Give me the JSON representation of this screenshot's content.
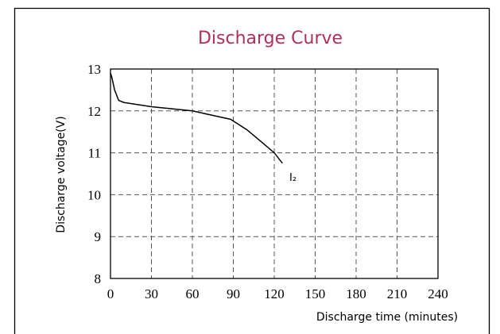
{
  "chart_data": {
    "type": "line",
    "title": "Discharge Curve",
    "x_label": "Discharge time (minutes)",
    "y_label": "Discharge voltage(V)",
    "annotation": "I₂",
    "series": [
      {
        "name": "I₂",
        "color": "#000000",
        "x": [
          0,
          1,
          3,
          6,
          10,
          30,
          60,
          88,
          100,
          111,
          120,
          126
        ],
        "values": [
          12.9,
          12.8,
          12.5,
          12.25,
          12.2,
          12.1,
          12.0,
          11.8,
          11.55,
          11.25,
          11.0,
          10.75
        ]
      }
    ],
    "xlim": [
      0,
      240
    ],
    "xticks": [
      0,
      30,
      60,
      90,
      120,
      150,
      180,
      210,
      240
    ],
    "ylim": [
      8,
      13
    ],
    "yticks": [
      8,
      9,
      10,
      11,
      12,
      13
    ],
    "grid": true
  }
}
